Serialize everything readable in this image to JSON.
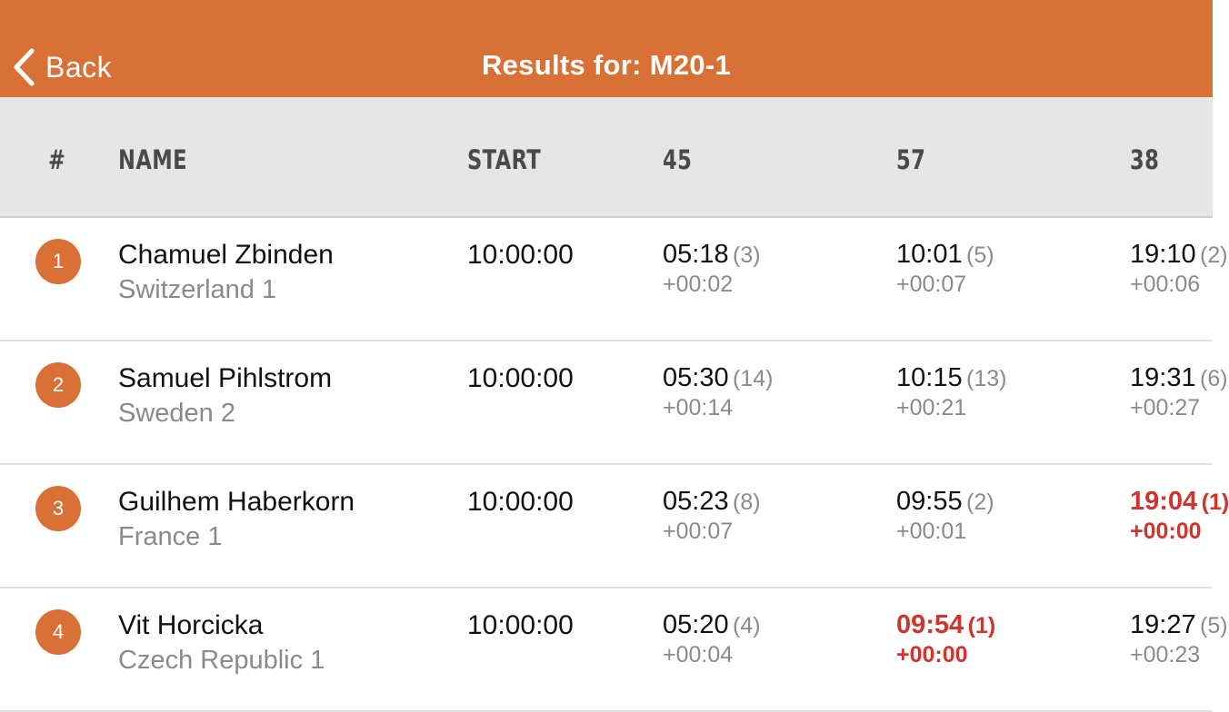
{
  "nav": {
    "back_label": "Back",
    "title": "Results for: M20-1"
  },
  "colors": {
    "brand": "#d97136",
    "header_bg": "#e6e6e6",
    "best_split": "#d0342c",
    "secondary_text": "#8a8a8a"
  },
  "table": {
    "columns": {
      "rank": "#",
      "name": "NAME",
      "start": "START",
      "c1": "45",
      "c2": "57",
      "c3": "38"
    },
    "rows": [
      {
        "rank": "1",
        "name": "Chamuel Zbinden",
        "team": "Switzerland 1",
        "start": "10:00:00",
        "c1": {
          "time": "05:18",
          "rank": "(3)",
          "diff": "+00:02"
        },
        "c2": {
          "time": "10:01",
          "rank": "(5)",
          "diff": "+00:07"
        },
        "c3": {
          "time": "19:10",
          "rank": "(2)",
          "diff": "+00:06"
        }
      },
      {
        "rank": "2",
        "name": "Samuel Pihlstrom",
        "team": "Sweden 2",
        "start": "10:00:00",
        "c1": {
          "time": "05:30",
          "rank": "(14)",
          "diff": "+00:14"
        },
        "c2": {
          "time": "10:15",
          "rank": "(13)",
          "diff": "+00:21"
        },
        "c3": {
          "time": "19:31",
          "rank": "(6)",
          "diff": "+00:27"
        }
      },
      {
        "rank": "3",
        "name": "Guilhem Haberkorn",
        "team": "France 1",
        "start": "10:00:00",
        "c1": {
          "time": "05:23",
          "rank": "(8)",
          "diff": "+00:07"
        },
        "c2": {
          "time": "09:55",
          "rank": "(2)",
          "diff": "+00:01"
        },
        "c3": {
          "time": "19:04",
          "rank": "(1)",
          "diff": "+00:00"
        }
      },
      {
        "rank": "4",
        "name": "Vit Horcicka",
        "team": "Czech Republic 1",
        "start": "10:00:00",
        "c1": {
          "time": "05:20",
          "rank": "(4)",
          "diff": "+00:04"
        },
        "c2": {
          "time": "09:54",
          "rank": "(1)",
          "diff": "+00:00"
        },
        "c3": {
          "time": "19:27",
          "rank": "(5)",
          "diff": "+00:23"
        }
      }
    ]
  }
}
